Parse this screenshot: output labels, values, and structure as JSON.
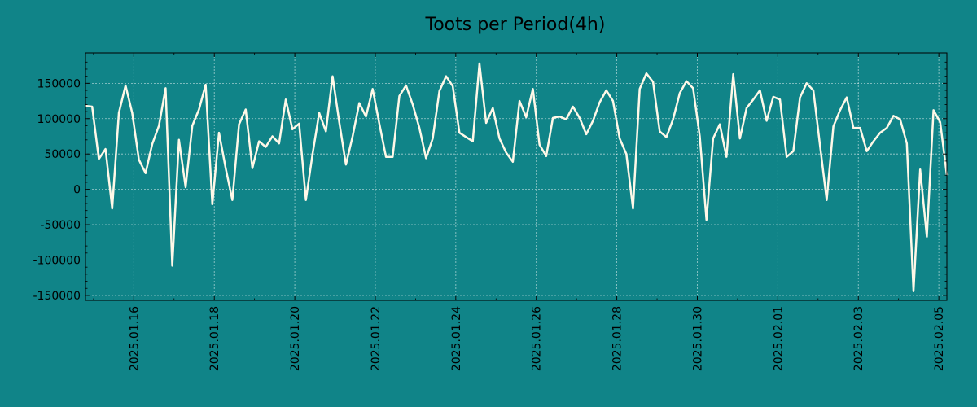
{
  "chart_data": {
    "type": "line",
    "title": "Toots per Period(4h)",
    "xlabel": "",
    "ylabel": "",
    "grid": true,
    "background_color": "#108488",
    "line_color": "#fff8e8",
    "grid_color": "#ffffff",
    "x_start": "2025.01.14 08:00",
    "x_end": "2025.02.05 12:00",
    "x_step_hours": 4,
    "xlim_days": [
      -1.2,
      20.2
    ],
    "ylim": [
      -157000,
      193000
    ],
    "y_ticks": [
      150000,
      100000,
      50000,
      0,
      -50000,
      -100000,
      -150000
    ],
    "y_tick_labels": [
      "150000",
      "100000",
      "50000",
      "0",
      "-50000",
      "-100000",
      "-150000"
    ],
    "x_ticks_days": [
      0,
      2,
      4,
      6,
      8,
      10,
      12,
      14,
      16,
      18,
      20
    ],
    "x_tick_labels": [
      "2025.01.16",
      "2025.01.18",
      "2025.01.20",
      "2025.01.22",
      "2025.01.24",
      "2025.01.26",
      "2025.01.28",
      "2025.01.30",
      "2025.02.01",
      "2025.02.03",
      "2025.02.05"
    ],
    "values": [
      118000,
      117000,
      43000,
      57000,
      -27000,
      108000,
      147000,
      108000,
      42000,
      23000,
      64000,
      90000,
      143000,
      -108000,
      70000,
      3000,
      90000,
      113000,
      148000,
      -21000,
      80000,
      30000,
      -15000,
      92000,
      113000,
      30000,
      68000,
      60000,
      75000,
      65000,
      127000,
      85000,
      93000,
      -15000,
      50000,
      108000,
      82000,
      160000,
      95000,
      35000,
      75000,
      122000,
      103000,
      142000,
      93000,
      46000,
      46000,
      132000,
      147000,
      120000,
      87000,
      44000,
      72000,
      139000,
      160000,
      146000,
      80000,
      74000,
      68000,
      178000,
      94000,
      115000,
      72000,
      52000,
      39000,
      125000,
      102000,
      142000,
      63000,
      47000,
      101000,
      103000,
      99000,
      117000,
      101000,
      78000,
      97000,
      123000,
      140000,
      125000,
      72000,
      50000,
      -27000,
      142000,
      164000,
      152000,
      82000,
      74000,
      99000,
      136000,
      153000,
      143000,
      75000,
      -43000,
      72000,
      92000,
      46000,
      163000,
      72000,
      115000,
      127000,
      140000,
      97000,
      131000,
      127000,
      46000,
      54000,
      130000,
      150000,
      140000,
      62000,
      -15000,
      89000,
      112000,
      130000,
      87000,
      87000,
      54000,
      68000,
      80000,
      87000,
      104000,
      99000,
      65000,
      -144000,
      28000,
      -67000,
      112000,
      95000,
      20000
    ]
  }
}
